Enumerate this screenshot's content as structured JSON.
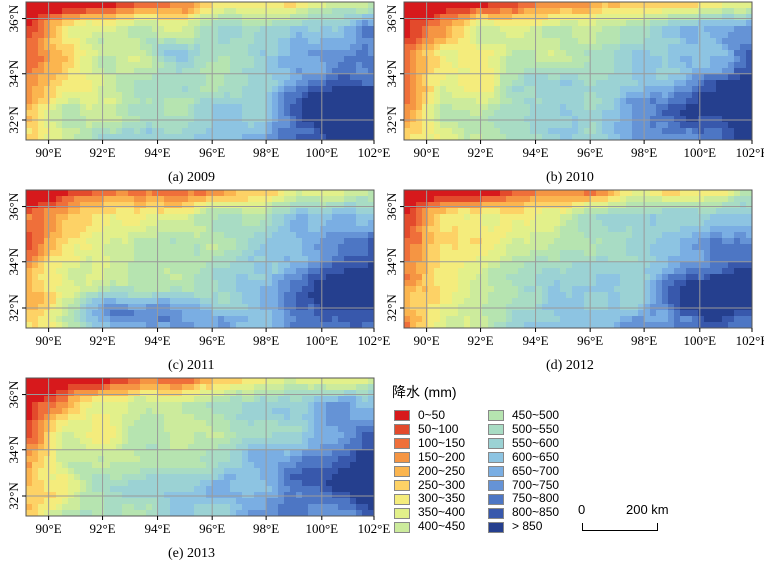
{
  "panels": [
    {
      "caption": "(a) 2009",
      "seed": 11
    },
    {
      "caption": "(b) 2010",
      "seed": 23
    },
    {
      "caption": "(c) 2011",
      "seed": 37
    },
    {
      "caption": "(d) 2012",
      "seed": 41
    },
    {
      "caption": "(e) 2013",
      "seed": 59
    }
  ],
  "axes": {
    "x_ticks": [
      "90°E",
      "92°E",
      "94°E",
      "96°E",
      "98°E",
      "100°E",
      "102°E"
    ],
    "y_ticks": [
      "36°N",
      "34°N",
      "32°N"
    ]
  },
  "legend": {
    "title": "降水 (mm)",
    "items": [
      {
        "label": "0~50",
        "color": "#d7191c"
      },
      {
        "label": "50~100",
        "color": "#e34a2c"
      },
      {
        "label": "100~150",
        "color": "#ef6f3a"
      },
      {
        "label": "150~200",
        "color": "#f59543"
      },
      {
        "label": "200~250",
        "color": "#fbb54f"
      },
      {
        "label": "250~300",
        "color": "#fdd266"
      },
      {
        "label": "300~350",
        "color": "#f4ec7c"
      },
      {
        "label": "350~400",
        "color": "#e2f08a"
      },
      {
        "label": "400~450",
        "color": "#cceb9c"
      },
      {
        "label": "450~500",
        "color": "#b6e4b0"
      },
      {
        "label": "500~550",
        "color": "#a8dcc4"
      },
      {
        "label": "550~600",
        "color": "#9bd2d4"
      },
      {
        "label": "600~650",
        "color": "#8dc4e2"
      },
      {
        "label": "650~700",
        "color": "#7aaee3"
      },
      {
        "label": "700~750",
        "color": "#6593d6"
      },
      {
        "label": "750~800",
        "color": "#4d76c4"
      },
      {
        "label": "800~850",
        "color": "#3858ac"
      },
      {
        "label": "> 850",
        "color": "#253f8e"
      }
    ]
  },
  "scalebar": {
    "zero": "0",
    "label": "200 km"
  }
}
